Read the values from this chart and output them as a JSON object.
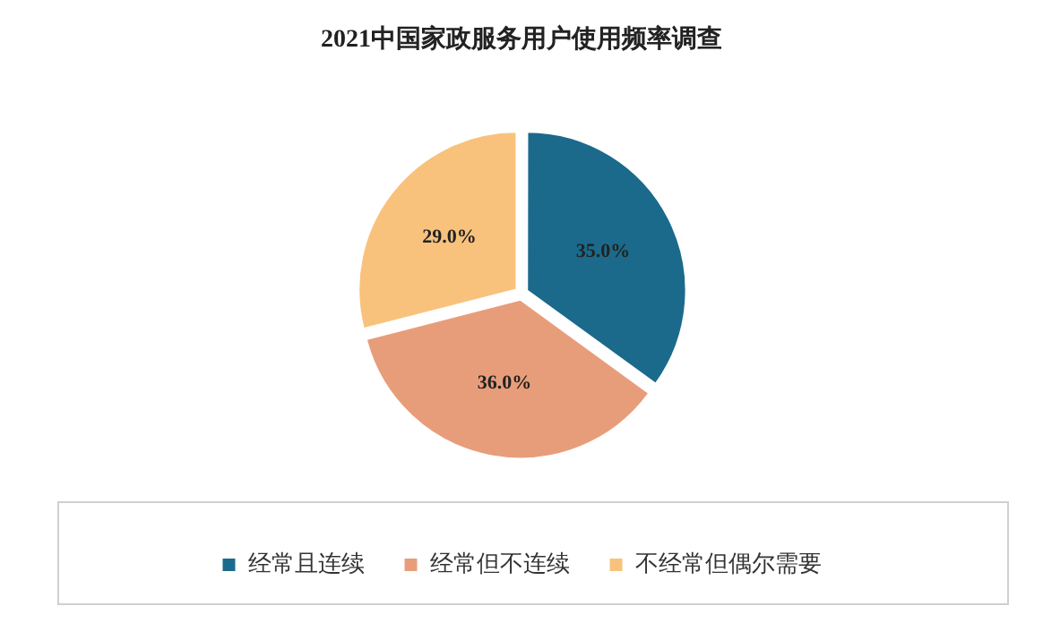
{
  "chart_data": {
    "type": "pie",
    "title": "2021中国家政服务用户使用频率调查",
    "categories": [
      "经常且连续",
      "经常但不连续",
      "不经常但偶尔需要"
    ],
    "values": [
      35.0,
      36.0,
      29.0
    ],
    "colors": [
      "#1b6a8c",
      "#e89d7a",
      "#f9c27c"
    ],
    "value_labels": [
      "35.0%",
      "36.0%",
      "29.0%"
    ],
    "legend": "bottom"
  }
}
